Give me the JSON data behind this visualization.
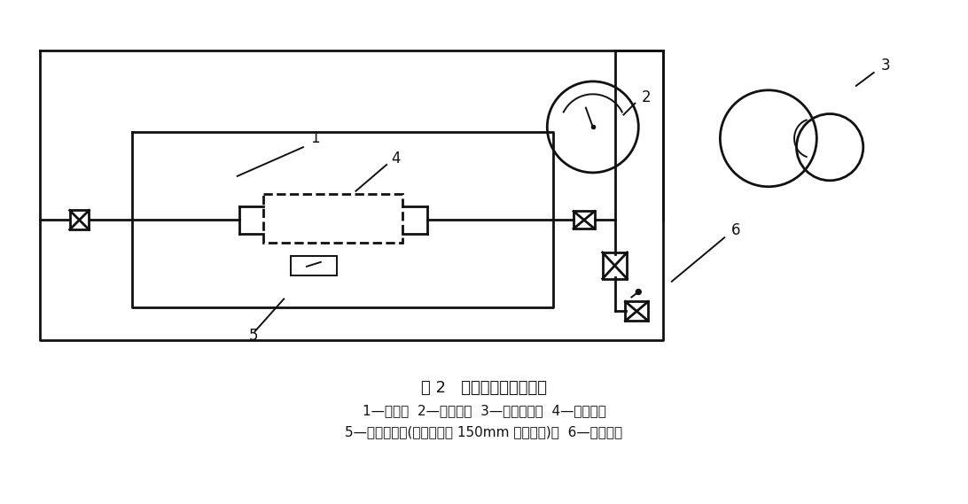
{
  "background_color": "#ffffff",
  "line_color": "#111111",
  "lw_thick": 2.0,
  "lw_thin": 1.4,
  "fig_title": "图 2   热冲击试验典型装置",
  "caption_line1": "1—筱子；  2—指示表；  3—高温油泵；  4—试验管；",
  "caption_line2": "5—环境测量点(距离试验管 150mm 以内测量)；  6—高压源。",
  "title_fontsize": 13,
  "caption_fontsize": 11
}
